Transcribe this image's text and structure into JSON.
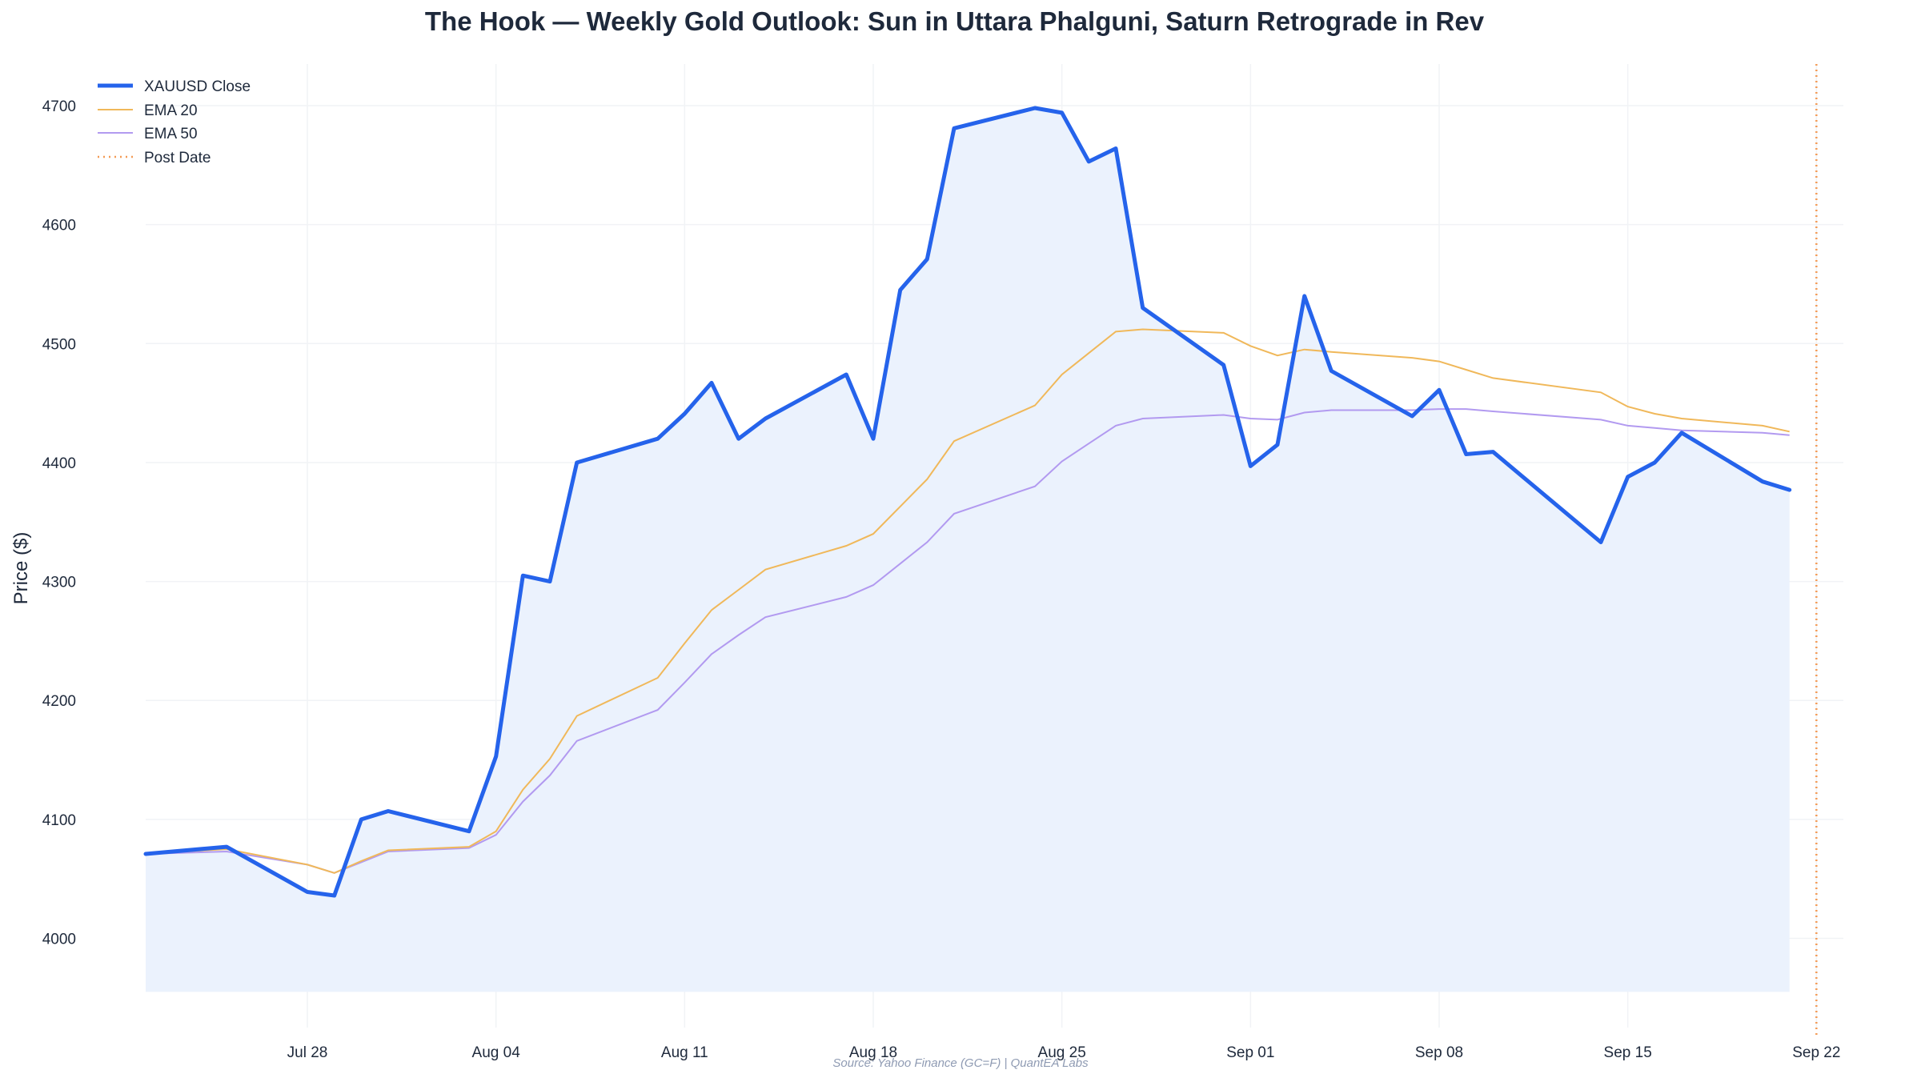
{
  "chart_data": {
    "type": "line",
    "title": "The Hook — Weekly Gold Outlook: Sun in Uttara Phalguni, Saturn Retrograde in Rev",
    "xlabel": "",
    "ylabel": "Price ($)",
    "source": "Source: Yahoo Finance (GC=F) | QuantEA Labs",
    "ylim": [
      3925,
      4735
    ],
    "xlim": [
      "2025-07-22",
      "2025-09-23"
    ],
    "yticks": [
      4000,
      4100,
      4200,
      4300,
      4400,
      4500,
      4600,
      4700
    ],
    "xticks": [
      {
        "date": "2025-07-28",
        "label": "Jul 28"
      },
      {
        "date": "2025-08-04",
        "label": "Aug 04"
      },
      {
        "date": "2025-08-11",
        "label": "Aug 11"
      },
      {
        "date": "2025-08-18",
        "label": "Aug 18"
      },
      {
        "date": "2025-08-25",
        "label": "Aug 25"
      },
      {
        "date": "2025-09-01",
        "label": "Sep 01"
      },
      {
        "date": "2025-09-08",
        "label": "Sep 08"
      },
      {
        "date": "2025-09-15",
        "label": "Sep 15"
      },
      {
        "date": "2025-09-22",
        "label": "Sep 22"
      }
    ],
    "grid": true,
    "legend_position": "top-left",
    "fill_baseline": 3955,
    "post_date": "2025-09-22",
    "series": [
      {
        "name": "XAUUSD Close",
        "color": "#2563eb",
        "style": "solid-thick",
        "points": [
          [
            "2025-07-22",
            4071
          ],
          [
            "2025-07-25",
            4077
          ],
          [
            "2025-07-28",
            4039
          ],
          [
            "2025-07-29",
            4036
          ],
          [
            "2025-07-30",
            4100
          ],
          [
            "2025-07-31",
            4107
          ],
          [
            "2025-08-03",
            4090
          ],
          [
            "2025-08-04",
            4153
          ],
          [
            "2025-08-05",
            4305
          ],
          [
            "2025-08-06",
            4300
          ],
          [
            "2025-08-07",
            4400
          ],
          [
            "2025-08-10",
            4420
          ],
          [
            "2025-08-11",
            4441
          ],
          [
            "2025-08-12",
            4467
          ],
          [
            "2025-08-13",
            4420
          ],
          [
            "2025-08-14",
            4437
          ],
          [
            "2025-08-17",
            4474
          ],
          [
            "2025-08-18",
            4420
          ],
          [
            "2025-08-19",
            4545
          ],
          [
            "2025-08-20",
            4571
          ],
          [
            "2025-08-21",
            4681
          ],
          [
            "2025-08-24",
            4698
          ],
          [
            "2025-08-25",
            4694
          ],
          [
            "2025-08-26",
            4653
          ],
          [
            "2025-08-27",
            4664
          ],
          [
            "2025-08-28",
            4530
          ],
          [
            "2025-08-31",
            4482
          ],
          [
            "2025-09-01",
            4397
          ],
          [
            "2025-09-02",
            4415
          ],
          [
            "2025-09-03",
            4540
          ],
          [
            "2025-09-04",
            4477
          ],
          [
            "2025-09-07",
            4439
          ],
          [
            "2025-09-08",
            4461
          ],
          [
            "2025-09-09",
            4407
          ],
          [
            "2025-09-10",
            4409
          ],
          [
            "2025-09-14",
            4333
          ],
          [
            "2025-09-15",
            4388
          ],
          [
            "2025-09-16",
            4400
          ],
          [
            "2025-09-17",
            4425
          ],
          [
            "2025-09-20",
            4384
          ],
          [
            "2025-09-21",
            4377
          ]
        ]
      },
      {
        "name": "EMA 20",
        "color": "#f0b85a",
        "style": "solid-thin",
        "points": [
          [
            "2025-07-22",
            4071
          ],
          [
            "2025-07-25",
            4075
          ],
          [
            "2025-07-28",
            4062
          ],
          [
            "2025-07-29",
            4055
          ],
          [
            "2025-07-30",
            4065
          ],
          [
            "2025-07-31",
            4074
          ],
          [
            "2025-08-03",
            4077
          ],
          [
            "2025-08-04",
            4090
          ],
          [
            "2025-08-05",
            4125
          ],
          [
            "2025-08-06",
            4151
          ],
          [
            "2025-08-07",
            4187
          ],
          [
            "2025-08-10",
            4219
          ],
          [
            "2025-08-11",
            4248
          ],
          [
            "2025-08-12",
            4276
          ],
          [
            "2025-08-13",
            4293
          ],
          [
            "2025-08-14",
            4310
          ],
          [
            "2025-08-17",
            4330
          ],
          [
            "2025-08-18",
            4340
          ],
          [
            "2025-08-19",
            4363
          ],
          [
            "2025-08-20",
            4386
          ],
          [
            "2025-08-21",
            4418
          ],
          [
            "2025-08-24",
            4448
          ],
          [
            "2025-08-25",
            4474
          ],
          [
            "2025-08-26",
            4492
          ],
          [
            "2025-08-27",
            4510
          ],
          [
            "2025-08-28",
            4512
          ],
          [
            "2025-08-31",
            4509
          ],
          [
            "2025-09-01",
            4498
          ],
          [
            "2025-09-02",
            4490
          ],
          [
            "2025-09-03",
            4495
          ],
          [
            "2025-09-04",
            4493
          ],
          [
            "2025-09-07",
            4488
          ],
          [
            "2025-09-08",
            4485
          ],
          [
            "2025-09-09",
            4478
          ],
          [
            "2025-09-10",
            4471
          ],
          [
            "2025-09-14",
            4459
          ],
          [
            "2025-09-15",
            4447
          ],
          [
            "2025-09-16",
            4441
          ],
          [
            "2025-09-17",
            4437
          ],
          [
            "2025-09-20",
            4431
          ],
          [
            "2025-09-21",
            4426
          ]
        ]
      },
      {
        "name": "EMA 50",
        "color": "#b29af0",
        "style": "solid-thin",
        "points": [
          [
            "2025-07-22",
            4071
          ],
          [
            "2025-07-25",
            4073
          ],
          [
            "2025-07-28",
            4062
          ],
          [
            "2025-07-29",
            4055
          ],
          [
            "2025-07-30",
            4064
          ],
          [
            "2025-07-31",
            4073
          ],
          [
            "2025-08-03",
            4076
          ],
          [
            "2025-08-04",
            4087
          ],
          [
            "2025-08-05",
            4115
          ],
          [
            "2025-08-06",
            4137
          ],
          [
            "2025-08-07",
            4166
          ],
          [
            "2025-08-10",
            4192
          ],
          [
            "2025-08-11",
            4215
          ],
          [
            "2025-08-12",
            4239
          ],
          [
            "2025-08-13",
            4255
          ],
          [
            "2025-08-14",
            4270
          ],
          [
            "2025-08-17",
            4287
          ],
          [
            "2025-08-18",
            4297
          ],
          [
            "2025-08-19",
            4315
          ],
          [
            "2025-08-20",
            4333
          ],
          [
            "2025-08-21",
            4357
          ],
          [
            "2025-08-24",
            4380
          ],
          [
            "2025-08-25",
            4401
          ],
          [
            "2025-08-26",
            4416
          ],
          [
            "2025-08-27",
            4431
          ],
          [
            "2025-08-28",
            4437
          ],
          [
            "2025-08-31",
            4440
          ],
          [
            "2025-09-01",
            4437
          ],
          [
            "2025-09-02",
            4436
          ],
          [
            "2025-09-03",
            4442
          ],
          [
            "2025-09-04",
            4444
          ],
          [
            "2025-09-07",
            4444
          ],
          [
            "2025-09-08",
            4445
          ],
          [
            "2025-09-09",
            4445
          ],
          [
            "2025-09-10",
            4443
          ],
          [
            "2025-09-14",
            4436
          ],
          [
            "2025-09-15",
            4431
          ],
          [
            "2025-09-16",
            4429
          ],
          [
            "2025-09-17",
            4427
          ],
          [
            "2025-09-20",
            4425
          ],
          [
            "2025-09-21",
            4423
          ]
        ]
      },
      {
        "name": "Post Date",
        "color": "#f39a55",
        "style": "dotted-vertical"
      }
    ]
  }
}
